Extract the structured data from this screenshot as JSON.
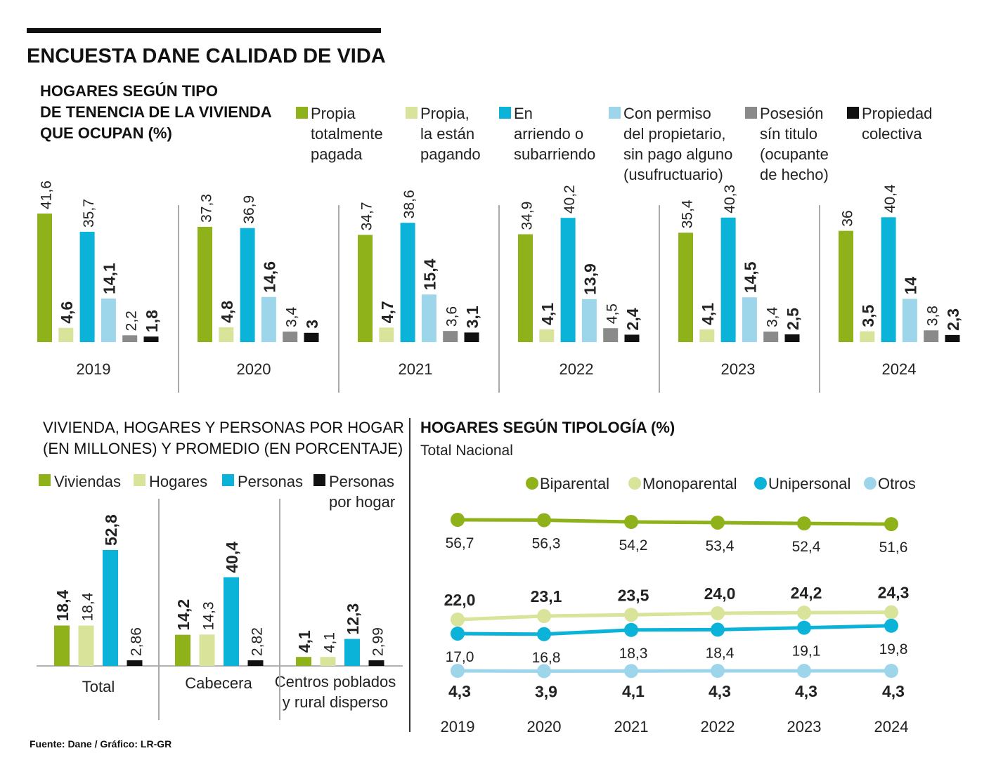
{
  "header": {
    "title": "ENCUESTA DANE CALIDAD DE VIDA",
    "source": "Fuente: Dane / Gráfico: LR-GR"
  },
  "colors": {
    "green": "#8fb21b",
    "light_green": "#d9e39a",
    "blue": "#0bb3d9",
    "light_blue": "#9dd6ea",
    "gray": "#8a8a8a",
    "black": "#111111",
    "line_otros": "#9dd6ea"
  },
  "chart_data": [
    {
      "id": "tenencia",
      "type": "bar",
      "title_lines": [
        "HOGARES SEGÚN TIPO",
        "DE TENENCIA DE LA VIVIENDA",
        "QUE OCUPAN (%)"
      ],
      "legend": [
        {
          "color_key": "green",
          "lines": [
            "Propia",
            "totalmente",
            "pagada"
          ]
        },
        {
          "color_key": "light_green",
          "lines": [
            "Propia,",
            "la están",
            "pagando"
          ]
        },
        {
          "color_key": "blue",
          "lines": [
            "En",
            "arriendo o",
            "subarriendo"
          ]
        },
        {
          "color_key": "light_blue",
          "lines": [
            "Con permiso",
            "del propietario,",
            "sin pago alguno",
            "(usufructuario)"
          ]
        },
        {
          "color_key": "gray",
          "lines": [
            "Posesión",
            "sín titulo",
            "(ocupante",
            "de hecho)"
          ]
        },
        {
          "color_key": "black",
          "lines": [
            "Propiedad",
            "colectiva"
          ]
        }
      ],
      "categories": [
        "2019",
        "2020",
        "2021",
        "2022",
        "2023",
        "2024"
      ],
      "series": [
        {
          "name": "Propia totalmente pagada",
          "color_key": "green",
          "bold": false,
          "values": [
            41.6,
            37.3,
            34.7,
            34.9,
            35.4,
            36
          ],
          "labels": [
            "41,6",
            "37,3",
            "34,7",
            "34,9",
            "35,4",
            "36"
          ]
        },
        {
          "name": "Propia, la están pagando",
          "color_key": "light_green",
          "bold": true,
          "values": [
            4.6,
            4.8,
            4.7,
            4.1,
            4.1,
            3.5
          ],
          "labels": [
            "4,6",
            "4,8",
            "4,7",
            "4,1",
            "4,1",
            "3,5"
          ]
        },
        {
          "name": "En arriendo o subarriendo",
          "color_key": "blue",
          "bold": false,
          "values": [
            35.7,
            36.9,
            38.6,
            40.2,
            40.3,
            40.4
          ],
          "labels": [
            "35,7",
            "36,9",
            "38,6",
            "40,2",
            "40,3",
            "40,4"
          ]
        },
        {
          "name": "Con permiso del propietario",
          "color_key": "light_blue",
          "bold": true,
          "values": [
            14.1,
            14.6,
            15.4,
            13.9,
            14.5,
            14
          ],
          "labels": [
            "14,1",
            "14,6",
            "15,4",
            "13,9",
            "14,5",
            "14"
          ]
        },
        {
          "name": "Posesión sín titulo",
          "color_key": "gray",
          "bold": false,
          "values": [
            2.2,
            3.4,
            3.6,
            4.5,
            3.4,
            3.8
          ],
          "labels": [
            "2,2",
            "3,4",
            "3,6",
            "4,5",
            "3,4",
            "3,8"
          ]
        },
        {
          "name": "Propiedad colectiva",
          "color_key": "black",
          "bold": true,
          "values": [
            1.8,
            3,
            3.1,
            2.4,
            2.5,
            2.3
          ],
          "labels": [
            "1,8",
            "3",
            "3,1",
            "2,4",
            "2,5",
            "2,3"
          ]
        }
      ],
      "ylim": [
        0,
        42
      ]
    },
    {
      "id": "vivienda",
      "type": "bar",
      "title_lines": [
        "VIVIENDA, HOGARES Y PERSONAS POR HOGAR",
        "(EN MILLONES) Y PROMEDIO (EN PORCENTAJE)"
      ],
      "legend": [
        {
          "color_key": "green",
          "lines": [
            "Viviendas"
          ]
        },
        {
          "color_key": "light_green",
          "lines": [
            "Hogares"
          ]
        },
        {
          "color_key": "blue",
          "lines": [
            "Personas"
          ]
        },
        {
          "color_key": "black",
          "lines": [
            "Personas",
            "por hogar"
          ]
        }
      ],
      "categories": [
        {
          "lines": [
            "Total"
          ]
        },
        {
          "lines": [
            "Cabecera"
          ]
        },
        {
          "lines": [
            "Centros poblados",
            "y rural disperso"
          ]
        }
      ],
      "series": [
        {
          "name": "Viviendas",
          "color_key": "green",
          "bold": true,
          "values": [
            18.4,
            14.2,
            4.1
          ],
          "labels": [
            "18,4",
            "14,2",
            "4,1"
          ]
        },
        {
          "name": "Hogares",
          "color_key": "light_green",
          "bold": false,
          "values": [
            18.4,
            14.3,
            4.1
          ],
          "labels": [
            "18,4",
            "14,3",
            "4,1"
          ]
        },
        {
          "name": "Personas",
          "color_key": "blue",
          "bold": true,
          "values": [
            52.8,
            40.4,
            12.3
          ],
          "labels": [
            "52,8",
            "40,4",
            "12,3"
          ]
        },
        {
          "name": "Personas por hogar",
          "color_key": "black",
          "bold": false,
          "values": [
            2.86,
            2.82,
            2.99
          ],
          "labels": [
            "2,86",
            "2,82",
            "2,99"
          ]
        }
      ],
      "ylim": [
        0,
        54
      ]
    },
    {
      "id": "tipologia",
      "type": "line",
      "title": "HOGARES SEGÚN TIPOLOGÍA (%)",
      "subtitle": "Total Nacional",
      "x": [
        "2019",
        "2020",
        "2021",
        "2022",
        "2023",
        "2024"
      ],
      "series": [
        {
          "name": "Biparental",
          "color_key": "green",
          "bold": false,
          "label_pos": "below",
          "values": [
            56.7,
            56.3,
            54.2,
            53.4,
            52.4,
            51.6
          ],
          "labels": [
            "56,7",
            "56,3",
            "54,2",
            "53,4",
            "52,4",
            "51,6"
          ]
        },
        {
          "name": "Monoparental",
          "color_key": "light_green",
          "bold": true,
          "label_pos": "above",
          "values": [
            22.0,
            23.1,
            23.5,
            24.0,
            24.2,
            24.3
          ],
          "labels": [
            "22,0",
            "23,1",
            "23,5",
            "24,0",
            "24,2",
            "24,3"
          ]
        },
        {
          "name": "Unipersonal",
          "color_key": "blue",
          "bold": false,
          "label_pos": "below",
          "values": [
            17.0,
            16.8,
            18.3,
            18.4,
            19.1,
            19.8
          ],
          "labels": [
            "17,0",
            "16,8",
            "18,3",
            "18,4",
            "19,1",
            "19,8"
          ]
        },
        {
          "name": "Otros",
          "color_key": "line_otros",
          "bold": true,
          "label_pos": "below",
          "values": [
            4.3,
            3.9,
            4.1,
            4.3,
            4.3,
            4.3
          ],
          "labels": [
            "4,3",
            "3,9",
            "4,1",
            "4,3",
            "4,3",
            "4,3"
          ]
        }
      ]
    }
  ]
}
